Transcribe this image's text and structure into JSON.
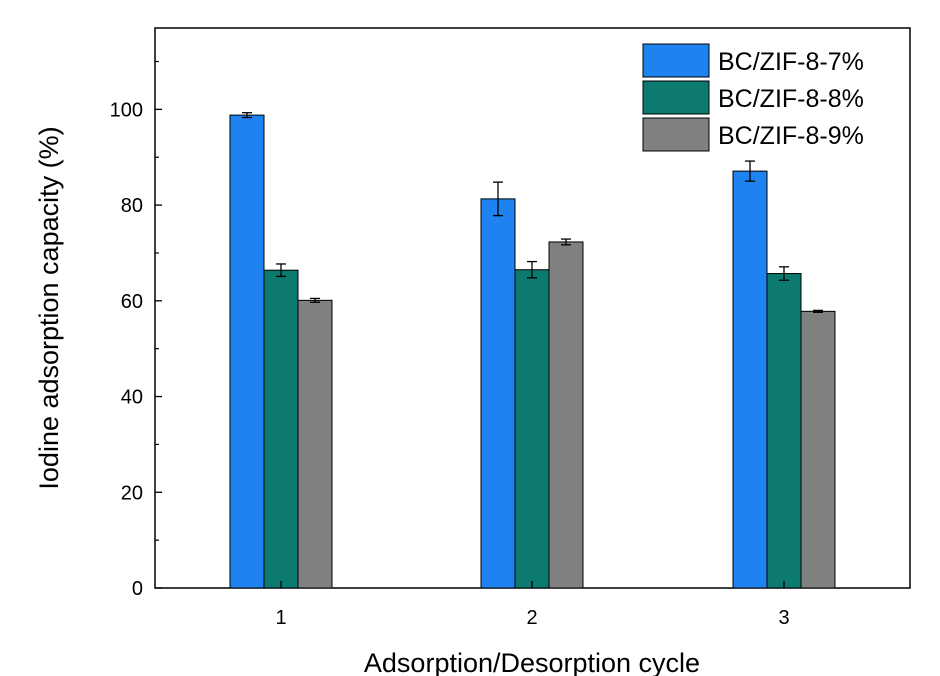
{
  "chart_data": {
    "type": "bar",
    "title": "",
    "xlabel": "Adsorption/Desorption cycle",
    "ylabel": "Iodine adsorption capacity (%)",
    "categories": [
      "1",
      "2",
      "3"
    ],
    "ylim": [
      0,
      117
    ],
    "yticks": [
      "0",
      "20",
      "40",
      "60",
      "80",
      "100"
    ],
    "grid": false,
    "legend_position": "top-right",
    "series": [
      {
        "name": "BC/ZIF-8-7%",
        "color": "#1e82f0",
        "values": [
          98.8,
          81.3,
          87.1
        ],
        "errors": [
          0.5,
          3.5,
          2.1
        ]
      },
      {
        "name": "BC/ZIF-8-8%",
        "color": "#0c7a6f",
        "values": [
          66.4,
          66.5,
          65.7
        ],
        "errors": [
          1.3,
          1.7,
          1.4
        ]
      },
      {
        "name": "BC/ZIF-8-9%",
        "color": "#808080",
        "values": [
          60.1,
          72.3,
          57.8
        ],
        "errors": [
          0.4,
          0.6,
          0.2
        ]
      }
    ]
  }
}
